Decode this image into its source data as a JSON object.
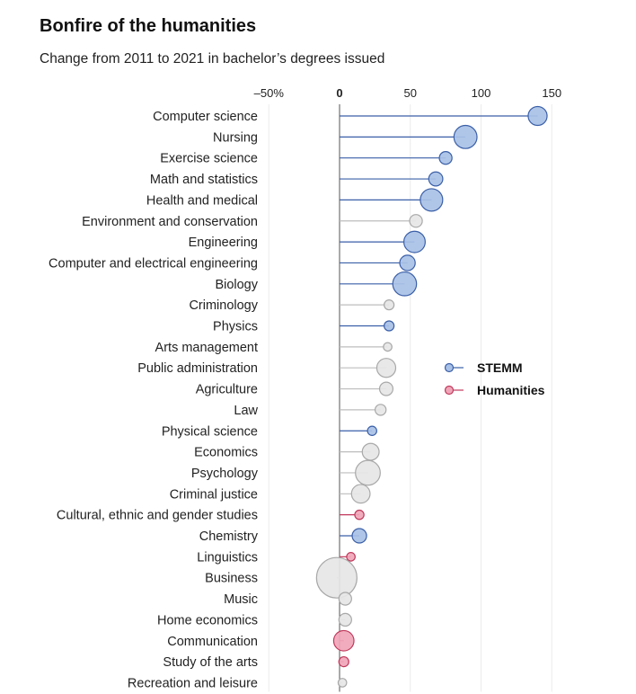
{
  "header": {
    "title": "Bonfire of the humanities",
    "subtitle": "Change from 2011 to 2021 in bachelor’s degrees issued"
  },
  "chart_data": {
    "type": "lollipop",
    "title": "Bonfire of the humanities",
    "subtitle": "Change from 2011 to 2021 in bachelor’s degrees issued",
    "xlim": [
      -50,
      150
    ],
    "ticks": [
      {
        "value": -50,
        "label": "–50%"
      },
      {
        "value": 0,
        "label": "0"
      },
      {
        "value": 50,
        "label": "50"
      },
      {
        "value": 100,
        "label": "100"
      },
      {
        "value": 150,
        "label": "150"
      }
    ],
    "legend_position": "right",
    "legend": [
      {
        "key": "stemm",
        "label": "STEMM"
      },
      {
        "key": "humanities",
        "label": "Humanities"
      }
    ],
    "colors": {
      "stemm_line": "#3a5fa8",
      "stemm_fill": "#a9c1e6",
      "stemm_stroke": "#3a5fa8",
      "humanities_line": "#c0395c",
      "humanities_fill": "#f0a6b8",
      "humanities_stroke": "#c0395c",
      "other_line": "#bdbdbd",
      "other_fill": "#e6e6e6",
      "other_stroke": "#a8a8a8"
    },
    "rows": [
      {
        "label": "Computer science",
        "value": 140,
        "group": "stemm",
        "size": 0.38
      },
      {
        "label": "Nursing",
        "value": 89,
        "group": "stemm",
        "size": 0.5
      },
      {
        "label": "Exercise science",
        "value": 75,
        "group": "stemm",
        "size": 0.2
      },
      {
        "label": "Math and statistics",
        "value": 68,
        "group": "stemm",
        "size": 0.24
      },
      {
        "label": "Health and medical",
        "value": 65,
        "group": "stemm",
        "size": 0.48
      },
      {
        "label": "Environment and conservation",
        "value": 54,
        "group": "other",
        "size": 0.2
      },
      {
        "label": "Engineering",
        "value": 53,
        "group": "stemm",
        "size": 0.45
      },
      {
        "label": "Computer and electrical engineering",
        "value": 48,
        "group": "stemm",
        "size": 0.28
      },
      {
        "label": "Biology",
        "value": 46,
        "group": "stemm",
        "size": 0.52
      },
      {
        "label": "Criminology",
        "value": 35,
        "group": "other",
        "size": 0.12
      },
      {
        "label": "Physics",
        "value": 35,
        "group": "stemm",
        "size": 0.12
      },
      {
        "label": "Arts management",
        "value": 34,
        "group": "other",
        "size": 0.08
      },
      {
        "label": "Public administration",
        "value": 33,
        "group": "other",
        "size": 0.38
      },
      {
        "label": "Agriculture",
        "value": 33,
        "group": "other",
        "size": 0.22
      },
      {
        "label": "Law",
        "value": 29,
        "group": "other",
        "size": 0.15
      },
      {
        "label": "Physical science",
        "value": 23,
        "group": "stemm",
        "size": 0.1
      },
      {
        "label": "Economics",
        "value": 22,
        "group": "other",
        "size": 0.32
      },
      {
        "label": "Psychology",
        "value": 20,
        "group": "other",
        "size": 0.55
      },
      {
        "label": "Criminal justice",
        "value": 15,
        "group": "other",
        "size": 0.37
      },
      {
        "label": "Cultural, ethnic and gender studies",
        "value": 14,
        "group": "humanities",
        "size": 0.1
      },
      {
        "label": "Chemistry",
        "value": 14,
        "group": "stemm",
        "size": 0.25
      },
      {
        "label": "Linguistics",
        "value": 8,
        "group": "humanities",
        "size": 0.08
      },
      {
        "label": "Business",
        "value": -2,
        "group": "other",
        "size": 1.0
      },
      {
        "label": "Music",
        "value": 4,
        "group": "other",
        "size": 0.2
      },
      {
        "label": "Home economics",
        "value": 4,
        "group": "other",
        "size": 0.2
      },
      {
        "label": "Communication",
        "value": 3,
        "group": "humanities",
        "size": 0.42
      },
      {
        "label": "Study of the arts",
        "value": 3,
        "group": "humanities",
        "size": 0.12
      },
      {
        "label": "Recreation and leisure",
        "value": 2,
        "group": "other",
        "size": 0.08
      }
    ]
  }
}
